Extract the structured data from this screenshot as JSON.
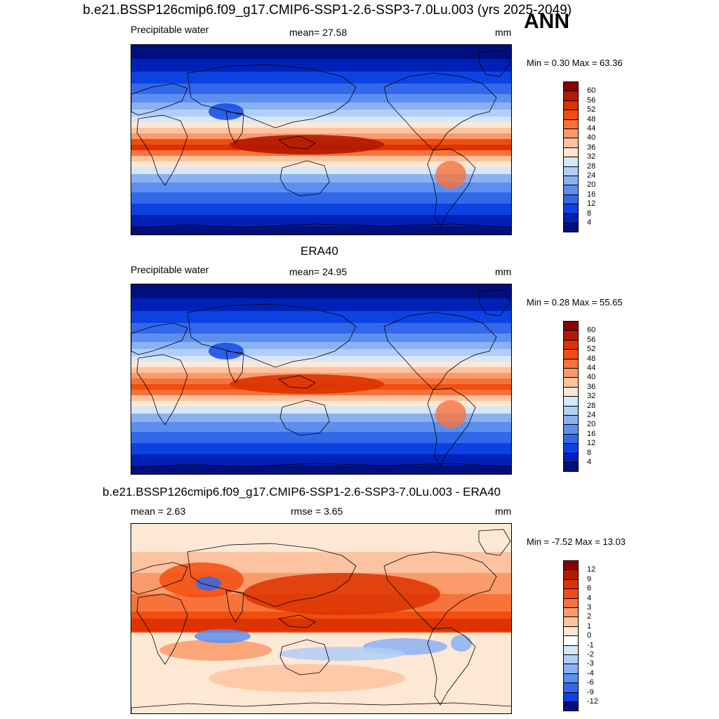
{
  "header": {
    "title": "b.e21.BSSP126cmip6.f09_g17.CMIP6-SSP1-2.6-SSP3-7.0Lu.003 (yrs 2025-2049)",
    "season": "ANN"
  },
  "panels": [
    {
      "title": "",
      "variable": "Precipitable water",
      "stat_text": "mean=  27.58",
      "units": "mm",
      "minmax": "Min =   0.30 Max =  63.36",
      "palette": "abs"
    },
    {
      "title": "ERA40",
      "variable": "Precipitable water",
      "stat_text": "mean=  24.95",
      "units": "mm",
      "minmax": "Min =   0.28 Max =  55.65",
      "palette": "abs"
    },
    {
      "title": "b.e21.BSSP126cmip6.f09_g17.CMIP6-SSP1-2.6-SSP3-7.0Lu.003 - ERA40",
      "variable": "",
      "stat_text": "mean =   2.63",
      "stat2_text": "rmse =   3.65",
      "units": "mm",
      "minmax": "Min =  -7.52 Max =  13.03",
      "palette": "diff"
    }
  ],
  "colorbars": {
    "abs": {
      "labels": [
        "60",
        "56",
        "52",
        "48",
        "44",
        "40",
        "36",
        "32",
        "28",
        "24",
        "20",
        "16",
        "12",
        "8",
        "4"
      ],
      "colors": [
        "#8a0000",
        "#b31a00",
        "#dc3300",
        "#f24d0f",
        "#f8733a",
        "#fb9a6a",
        "#fdc3a0",
        "#fde8d5",
        "#d6e6fb",
        "#b2cdf7",
        "#8ab1f3",
        "#5d8ff0",
        "#3468ea",
        "#0d42e2",
        "#0021b8",
        "#000f80"
      ]
    },
    "diff": {
      "labels": [
        "12",
        "9",
        "6",
        "4",
        "3",
        "2",
        "1",
        "0",
        "-1",
        "-2",
        "-3",
        "-4",
        "-6",
        "-9",
        "-12"
      ],
      "colors": [
        "#8a0000",
        "#b31a00",
        "#dc3300",
        "#f24d0f",
        "#f8733a",
        "#fb9a6a",
        "#fdc3a0",
        "#fde8d5",
        "#ffffff",
        "#d6e6fb",
        "#b2cdf7",
        "#8ab1f3",
        "#5d8ff0",
        "#3468ea",
        "#0d42e2",
        "#000f80"
      ]
    }
  }
}
